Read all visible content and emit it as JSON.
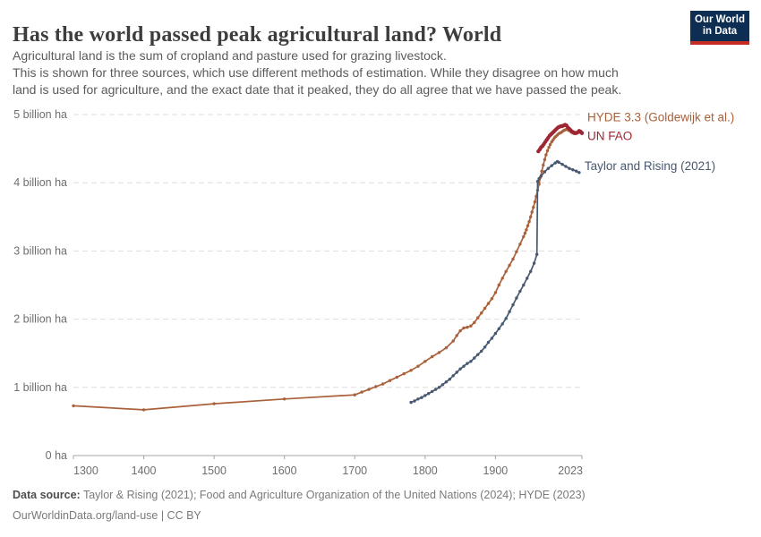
{
  "header": {
    "title": "Has the world passed peak agricultural land? World",
    "subtitle_lines": [
      "Agricultural land is the sum of cropland and pasture used for grazing livestock.",
      "This is shown for three sources, which use different methods of estimation. While they disagree on how much",
      "land is used for agriculture, and the exact date that it peaked, they do all agree that we have passed the peak."
    ],
    "logo": {
      "line1": "Our World",
      "line2": "in Data",
      "bg_color": "#0d2e52",
      "accent_color": "#c62d24"
    }
  },
  "chart_data": {
    "type": "line",
    "title": "Has the world passed peak agricultural land? World",
    "xlabel": "",
    "ylabel": "",
    "unit": "billion ha",
    "xlim": [
      1300,
      2023
    ],
    "ylim": [
      0,
      5
    ],
    "grid": "horizontal-dashed",
    "legend_position": "right-of-line-ends",
    "x_ticks": [
      1300,
      1400,
      1500,
      1600,
      1700,
      1800,
      1900,
      2023
    ],
    "y_ticks": [
      {
        "value": 0,
        "label": "0 ha"
      },
      {
        "value": 1,
        "label": "1 billion ha"
      },
      {
        "value": 2,
        "label": "2 billion ha"
      },
      {
        "value": 3,
        "label": "3 billion ha"
      },
      {
        "value": 4,
        "label": "4 billion ha"
      },
      {
        "value": 5,
        "label": "5 billion ha"
      }
    ],
    "series": [
      {
        "id": "hyde",
        "name": "HYDE 3.3 (Goldewijk et al.)",
        "color": "#a9613b",
        "line_width": 1.7,
        "marker_radius": 1.7,
        "points": [
          [
            1300,
            0.73
          ],
          [
            1400,
            0.67
          ],
          [
            1500,
            0.76
          ],
          [
            1600,
            0.83
          ],
          [
            1700,
            0.89
          ],
          [
            1710,
            0.93
          ],
          [
            1720,
            0.97
          ],
          [
            1730,
            1.01
          ],
          [
            1740,
            1.05
          ],
          [
            1750,
            1.1
          ],
          [
            1760,
            1.15
          ],
          [
            1770,
            1.2
          ],
          [
            1780,
            1.25
          ],
          [
            1790,
            1.31
          ],
          [
            1800,
            1.38
          ],
          [
            1810,
            1.45
          ],
          [
            1820,
            1.51
          ],
          [
            1830,
            1.58
          ],
          [
            1840,
            1.68
          ],
          [
            1845,
            1.76
          ],
          [
            1850,
            1.83
          ],
          [
            1855,
            1.87
          ],
          [
            1860,
            1.88
          ],
          [
            1865,
            1.9
          ],
          [
            1870,
            1.95
          ],
          [
            1875,
            2.02
          ],
          [
            1880,
            2.09
          ],
          [
            1885,
            2.16
          ],
          [
            1890,
            2.23
          ],
          [
            1895,
            2.3
          ],
          [
            1900,
            2.39
          ],
          [
            1905,
            2.5
          ],
          [
            1910,
            2.6
          ],
          [
            1915,
            2.7
          ],
          [
            1920,
            2.79
          ],
          [
            1925,
            2.88
          ],
          [
            1930,
            2.99
          ],
          [
            1935,
            3.1
          ],
          [
            1940,
            3.21
          ],
          [
            1942,
            3.26
          ],
          [
            1944,
            3.31
          ],
          [
            1946,
            3.37
          ],
          [
            1948,
            3.43
          ],
          [
            1950,
            3.5
          ],
          [
            1952,
            3.57
          ],
          [
            1954,
            3.64
          ],
          [
            1956,
            3.72
          ],
          [
            1958,
            3.8
          ],
          [
            1960,
            3.89
          ],
          [
            1962,
            3.98
          ],
          [
            1964,
            4.08
          ],
          [
            1966,
            4.17
          ],
          [
            1968,
            4.26
          ],
          [
            1970,
            4.34
          ],
          [
            1972,
            4.41
          ],
          [
            1974,
            4.47
          ],
          [
            1976,
            4.52
          ],
          [
            1978,
            4.56
          ],
          [
            1980,
            4.6
          ],
          [
            1982,
            4.63
          ],
          [
            1984,
            4.66
          ],
          [
            1986,
            4.68
          ],
          [
            1988,
            4.7
          ],
          [
            1990,
            4.72
          ],
          [
            1992,
            4.73
          ],
          [
            1994,
            4.74
          ],
          [
            1996,
            4.76
          ],
          [
            1998,
            4.77
          ],
          [
            2000,
            4.78
          ],
          [
            2002,
            4.78
          ],
          [
            2004,
            4.77
          ],
          [
            2006,
            4.76
          ],
          [
            2008,
            4.74
          ],
          [
            2010,
            4.73
          ],
          [
            2012,
            4.72
          ],
          [
            2014,
            4.72
          ],
          [
            2016,
            4.73
          ],
          [
            2018,
            4.74
          ],
          [
            2020,
            4.74
          ],
          [
            2022,
            4.73
          ],
          [
            2023,
            4.72
          ]
        ]
      },
      {
        "id": "taylor-rising",
        "name": "Taylor and Rising (2021)",
        "color": "#475870",
        "line_width": 1.7,
        "marker_radius": 1.7,
        "points": [
          [
            1780,
            0.78
          ],
          [
            1785,
            0.8
          ],
          [
            1790,
            0.83
          ],
          [
            1795,
            0.85
          ],
          [
            1800,
            0.88
          ],
          [
            1805,
            0.91
          ],
          [
            1810,
            0.94
          ],
          [
            1815,
            0.97
          ],
          [
            1820,
            1.0
          ],
          [
            1825,
            1.04
          ],
          [
            1830,
            1.08
          ],
          [
            1835,
            1.12
          ],
          [
            1840,
            1.17
          ],
          [
            1845,
            1.22
          ],
          [
            1850,
            1.27
          ],
          [
            1855,
            1.31
          ],
          [
            1860,
            1.35
          ],
          [
            1865,
            1.38
          ],
          [
            1870,
            1.43
          ],
          [
            1875,
            1.48
          ],
          [
            1880,
            1.53
          ],
          [
            1885,
            1.59
          ],
          [
            1890,
            1.66
          ],
          [
            1895,
            1.72
          ],
          [
            1900,
            1.79
          ],
          [
            1905,
            1.86
          ],
          [
            1910,
            1.93
          ],
          [
            1915,
            2.01
          ],
          [
            1920,
            2.11
          ],
          [
            1925,
            2.21
          ],
          [
            1930,
            2.31
          ],
          [
            1935,
            2.41
          ],
          [
            1940,
            2.5
          ],
          [
            1945,
            2.6
          ],
          [
            1950,
            2.7
          ],
          [
            1955,
            2.82
          ],
          [
            1959,
            2.95
          ],
          [
            1960,
            4.02
          ],
          [
            1962,
            4.06
          ],
          [
            1965,
            4.1
          ],
          [
            1970,
            4.16
          ],
          [
            1975,
            4.21
          ],
          [
            1980,
            4.25
          ],
          [
            1985,
            4.29
          ],
          [
            1988,
            4.31
          ],
          [
            1990,
            4.3
          ],
          [
            1995,
            4.27
          ],
          [
            2000,
            4.24
          ],
          [
            2005,
            4.21
          ],
          [
            2010,
            4.19
          ],
          [
            2015,
            4.17
          ],
          [
            2019,
            4.15
          ]
        ]
      },
      {
        "id": "un-fao",
        "name": "UN FAO",
        "color": "#9d2733",
        "line_width": 3.2,
        "marker_radius": 2.2,
        "points": [
          [
            1961,
            4.46
          ],
          [
            1963,
            4.49
          ],
          [
            1965,
            4.52
          ],
          [
            1967,
            4.54
          ],
          [
            1969,
            4.57
          ],
          [
            1971,
            4.6
          ],
          [
            1973,
            4.63
          ],
          [
            1975,
            4.66
          ],
          [
            1977,
            4.69
          ],
          [
            1979,
            4.71
          ],
          [
            1981,
            4.73
          ],
          [
            1983,
            4.75
          ],
          [
            1985,
            4.77
          ],
          [
            1987,
            4.79
          ],
          [
            1989,
            4.81
          ],
          [
            1991,
            4.82
          ],
          [
            1993,
            4.83
          ],
          [
            1995,
            4.83
          ],
          [
            1997,
            4.84
          ],
          [
            1999,
            4.85
          ],
          [
            2001,
            4.84
          ],
          [
            2003,
            4.81
          ],
          [
            2005,
            4.79
          ],
          [
            2007,
            4.77
          ],
          [
            2009,
            4.75
          ],
          [
            2011,
            4.74
          ],
          [
            2013,
            4.73
          ],
          [
            2015,
            4.73
          ],
          [
            2017,
            4.74
          ],
          [
            2019,
            4.76
          ],
          [
            2021,
            4.75
          ],
          [
            2023,
            4.73
          ]
        ]
      }
    ]
  },
  "footer": {
    "source_label": "Data source:",
    "source_text": " Taylor & Rising (2021); Food and Agriculture Organization of the United Nations (2024); HYDE (2023)",
    "link_line": "OurWorldinData.org/land-use | CC BY"
  }
}
